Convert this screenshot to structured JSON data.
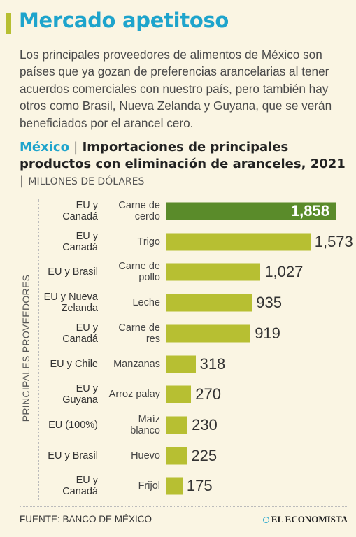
{
  "title": "Mercado apetitoso",
  "intro": "Los principales proveedores de alimentos de México son países que ya gozan de preferencias arancelarias al tener acuerdos comerciales con nuestro país, pero también hay otros como Brasil, Nueva Zelanda y Guyana, que se verán beneficiados por el arancel cero.",
  "subtitle": {
    "country": "México",
    "separator": "|",
    "text": "Importaciones de principales productos con eliminación de aranceles, 2021",
    "units_separator": "|",
    "units": "MILLONES DE DÓLARES"
  },
  "footer": {
    "source": "FUENTE: BANCO DE MÉXICO",
    "brand": "EL ECONOMISTA"
  },
  "colors": {
    "accent": "#1ea4cc",
    "bar": "#b7bf32",
    "bar_highlight": "#5a8b2a",
    "background": "#faf5e3"
  },
  "chart_data": {
    "type": "bar",
    "orientation": "horizontal",
    "ylabel": "PRINCIPALES PROVEEDORES",
    "xlim": [
      0,
      1858
    ],
    "grid": false,
    "categories": [
      "Carne de cerdo",
      "Trigo",
      "Carne de pollo",
      "Leche",
      "Carne de res",
      "Manzanas",
      "Arroz palay",
      "Maíz blanco",
      "Huevo",
      "Frijol"
    ],
    "providers": [
      "EU y Canadá",
      "EU y Canadá",
      "EU y Brasil",
      "EU y Nueva Zelanda",
      "EU y Canadá",
      "EU y Chile",
      "EU y Guyana",
      "EU (100%)",
      "EU y Brasil",
      "EU y Canadá"
    ],
    "values": [
      1858,
      1573,
      1027,
      935,
      919,
      318,
      270,
      230,
      225,
      175
    ],
    "value_labels": [
      "1,858",
      "1,573",
      "1,027",
      "935",
      "919",
      "318",
      "270",
      "230",
      "225",
      "175"
    ],
    "highlight_index": 0
  }
}
